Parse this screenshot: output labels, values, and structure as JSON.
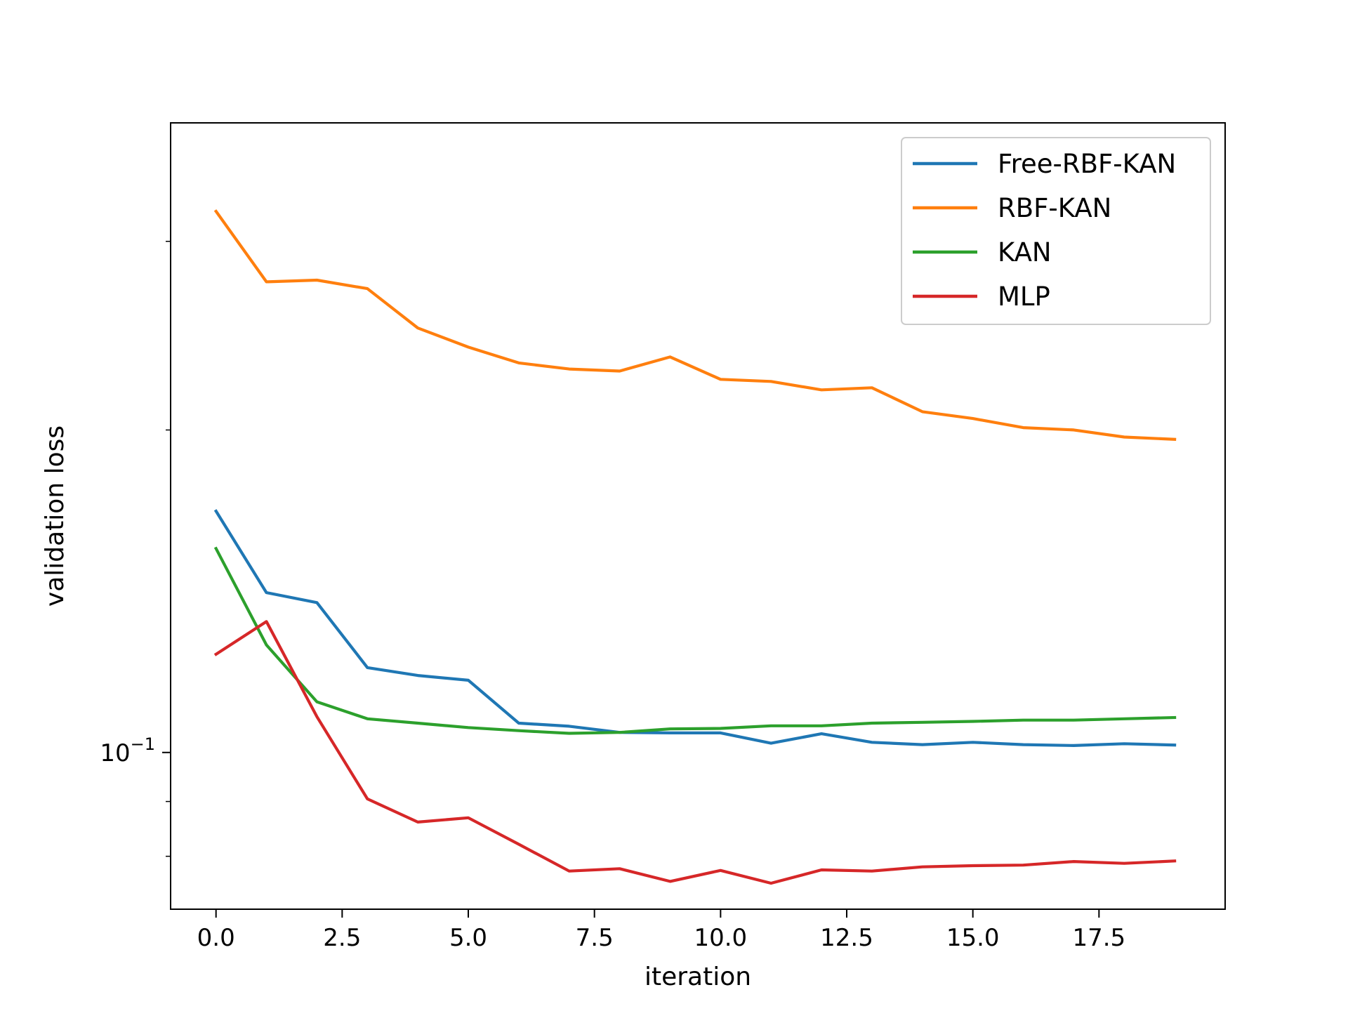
{
  "chart_data": {
    "type": "line",
    "xlabel": "iteration",
    "ylabel": "validation loss",
    "xlim": [
      -0.9,
      20.0
    ],
    "ylim": [
      0.0714,
      0.387
    ],
    "yscale": "log",
    "grid": false,
    "legend_position": "top-right",
    "x_ticks": [
      {
        "value": 0.0,
        "label": "0.0"
      },
      {
        "value": 2.5,
        "label": "2.5"
      },
      {
        "value": 5.0,
        "label": "5.0"
      },
      {
        "value": 7.5,
        "label": "7.5"
      },
      {
        "value": 10.0,
        "label": "10.0"
      },
      {
        "value": 12.5,
        "label": "12.5"
      },
      {
        "value": 15.0,
        "label": "15.0"
      },
      {
        "value": 17.5,
        "label": "17.5"
      }
    ],
    "y_major_ticks": [
      {
        "value": 0.1,
        "base": "10",
        "exponent": "−1"
      }
    ],
    "y_minor_ticks": [
      0.08,
      0.09,
      0.2,
      0.3
    ],
    "x": [
      0,
      1,
      2,
      3,
      4,
      5,
      6,
      7,
      8,
      9,
      10,
      11,
      12,
      13,
      14,
      15,
      16,
      17,
      18,
      19
    ],
    "series": [
      {
        "name": "Free-RBF-KAN",
        "color": "#1f77b4",
        "values": [
          0.168,
          0.141,
          0.138,
          0.12,
          0.118,
          0.1168,
          0.1065,
          0.1058,
          0.1044,
          0.1043,
          0.1043,
          0.102,
          0.1041,
          0.1022,
          0.1017,
          0.1022,
          0.1017,
          0.1015,
          0.1019,
          0.1016
        ]
      },
      {
        "name": "RBF-KAN",
        "color": "#ff7f0e",
        "values": [
          0.32,
          0.275,
          0.276,
          0.271,
          0.249,
          0.239,
          0.231,
          0.228,
          0.227,
          0.234,
          0.223,
          0.222,
          0.218,
          0.219,
          0.208,
          0.205,
          0.201,
          0.2,
          0.197,
          0.196
        ]
      },
      {
        "name": "KAN",
        "color": "#2ca02c",
        "values": [
          0.155,
          0.126,
          0.1115,
          0.1075,
          0.1065,
          0.1055,
          0.1048,
          0.1042,
          0.1044,
          0.1052,
          0.1053,
          0.1059,
          0.1059,
          0.1065,
          0.1067,
          0.1069,
          0.1072,
          0.1072,
          0.1075,
          0.1078
        ]
      },
      {
        "name": "MLP",
        "color": "#d62728",
        "values": [
          0.1235,
          0.1325,
          0.108,
          0.0905,
          0.0861,
          0.0869,
          0.0821,
          0.0775,
          0.0779,
          0.0758,
          0.0776,
          0.0755,
          0.0777,
          0.0775,
          0.0782,
          0.0784,
          0.0785,
          0.0791,
          0.0788,
          0.0792
        ]
      }
    ]
  }
}
